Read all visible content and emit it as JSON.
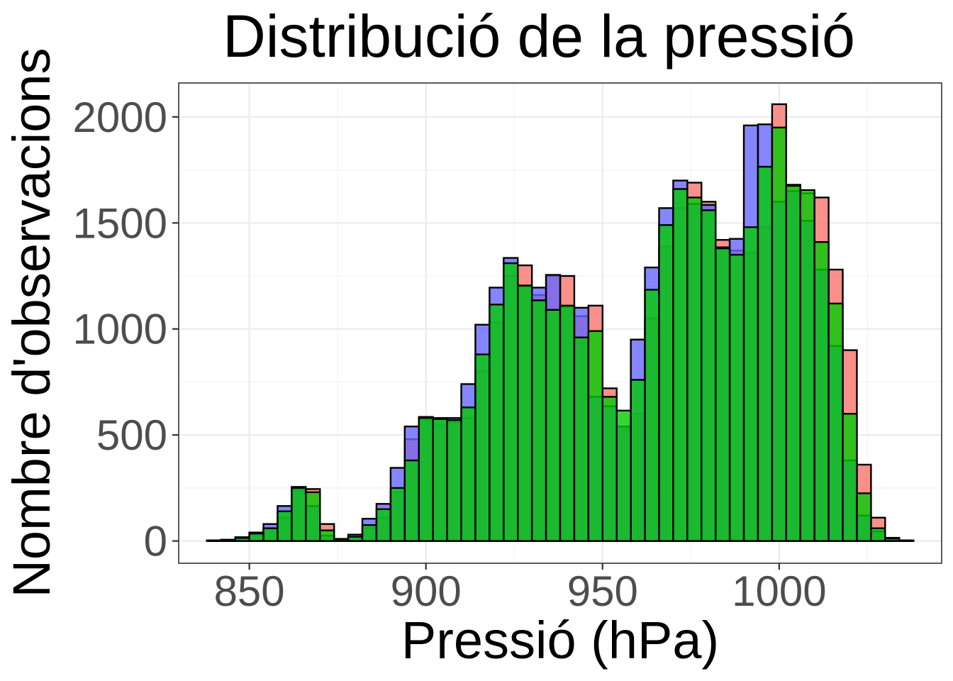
{
  "chart_data": {
    "type": "bar",
    "subtype": "overlapping-histogram",
    "title": "Distribució de la pressió",
    "xlabel": "Pressió (hPa)",
    "ylabel": "Nombre d'observacions",
    "xlim": [
      830,
      1046
    ],
    "ylim": [
      -105,
      2160
    ],
    "x_ticks": [
      850,
      900,
      950,
      1000
    ],
    "y_ticks": [
      0,
      500,
      1000,
      1500,
      2000
    ],
    "grid": true,
    "legend": "none",
    "bin_width": 4,
    "bin_centers": [
      840,
      844,
      848,
      852,
      856,
      860,
      864,
      868,
      872,
      876,
      880,
      884,
      888,
      892,
      896,
      900,
      904,
      908,
      912,
      916,
      920,
      924,
      928,
      932,
      936,
      940,
      944,
      948,
      952,
      956,
      960,
      964,
      968,
      972,
      976,
      980,
      984,
      988,
      992,
      996,
      1000,
      1004,
      1008,
      1012,
      1016,
      1020,
      1024,
      1028,
      1032,
      1036
    ],
    "series": [
      {
        "color": "#f8766d",
        "values": [
          2,
          4,
          12,
          30,
          60,
          110,
          240,
          245,
          80,
          8,
          15,
          60,
          110,
          230,
          480,
          570,
          545,
          560,
          580,
          800,
          1030,
          1250,
          1300,
          1160,
          1250,
          1250,
          1060,
          1110,
          720,
          540,
          600,
          1050,
          1390,
          1570,
          1690,
          1600,
          1420,
          1370,
          1360,
          1480,
          2060,
          1680,
          1640,
          1620,
          1280,
          900,
          360,
          110,
          15,
          3
        ]
      },
      {
        "color": "#6666ff",
        "values": [
          3,
          6,
          18,
          40,
          80,
          165,
          255,
          165,
          25,
          10,
          30,
          105,
          175,
          345,
          540,
          585,
          580,
          580,
          740,
          1020,
          1195,
          1335,
          1200,
          1195,
          1255,
          1105,
          1100,
          680,
          635,
          540,
          950,
          1290,
          1570,
          1700,
          1590,
          1585,
          1385,
          1425,
          1960,
          1965,
          1600,
          1650,
          1510,
          1280,
          920,
          380,
          120,
          45,
          10,
          2
        ]
      },
      {
        "color": "#00cc00",
        "values": [
          2,
          5,
          14,
          35,
          60,
          140,
          250,
          230,
          50,
          9,
          20,
          75,
          150,
          250,
          380,
          580,
          575,
          570,
          630,
          880,
          1115,
          1310,
          1205,
          1135,
          1090,
          1110,
          960,
          990,
          680,
          615,
          760,
          1185,
          1490,
          1660,
          1620,
          1560,
          1380,
          1350,
          1480,
          1765,
          1950,
          1675,
          1655,
          1410,
          1120,
          600,
          225,
          60,
          12,
          2
        ]
      }
    ]
  }
}
